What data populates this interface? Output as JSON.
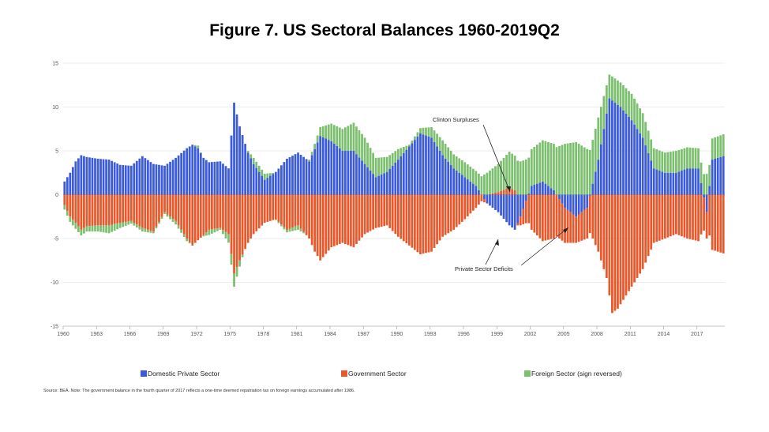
{
  "chart_data": {
    "type": "bar",
    "title": "Figure 7. US Sectoral Balances 1960-2019Q2",
    "stacked": true,
    "ylim": [
      -15,
      15
    ],
    "yticks": [
      -15,
      -10,
      -5,
      0,
      5,
      10,
      15
    ],
    "xlim": [
      1960,
      2019.5
    ],
    "xticks": [
      "1960",
      "1963",
      "1966",
      "1969",
      "1972",
      "1975",
      "1978",
      "1981",
      "1984",
      "1987",
      "1990",
      "1993",
      "1996",
      "1999",
      "2002",
      "2005",
      "2008",
      "2011",
      "2014",
      "2017"
    ],
    "grid": true,
    "legend_position": "bottom",
    "colors": {
      "domestic_private": "#3b5bdb",
      "government": "#e8582a",
      "foreign": "#7cbf6f",
      "grid": "#d9d9d9",
      "axis": "#999999"
    },
    "series": [
      {
        "name": "Domestic Private Sector",
        "points": [
          [
            1960,
            1.5
          ],
          [
            1960.5,
            2.5
          ],
          [
            1961,
            3.8
          ],
          [
            1961.5,
            4.5
          ],
          [
            1962,
            4.3
          ],
          [
            1963,
            4.1
          ],
          [
            1964,
            4.0
          ],
          [
            1965,
            3.4
          ],
          [
            1966,
            3.3
          ],
          [
            1967,
            4.4
          ],
          [
            1968,
            3.5
          ],
          [
            1969,
            3.3
          ],
          [
            1970,
            4.2
          ],
          [
            1971,
            5.3
          ],
          [
            1971.5,
            5.7
          ],
          [
            1972,
            5.3
          ],
          [
            1972.5,
            4.2
          ],
          [
            1973,
            3.7
          ],
          [
            1974,
            3.8
          ],
          [
            1974.75,
            3.0
          ],
          [
            1975.25,
            10.5
          ],
          [
            1975.75,
            7.8
          ],
          [
            1976.5,
            4.8
          ],
          [
            1977,
            3.5
          ],
          [
            1978,
            1.7
          ],
          [
            1979,
            2.6
          ],
          [
            1980,
            4.1
          ],
          [
            1981,
            4.8
          ],
          [
            1982,
            3.8
          ],
          [
            1982.5,
            5.2
          ],
          [
            1983,
            6.7
          ],
          [
            1984,
            6.1
          ],
          [
            1985,
            5.0
          ],
          [
            1986,
            5.0
          ],
          [
            1987,
            3.5
          ],
          [
            1988,
            2.0
          ],
          [
            1989,
            2.6
          ],
          [
            1990,
            4.0
          ],
          [
            1991,
            5.5
          ],
          [
            1992,
            7.0
          ],
          [
            1993,
            6.5
          ],
          [
            1994,
            4.5
          ],
          [
            1995,
            3.0
          ],
          [
            1996,
            2.0
          ],
          [
            1997,
            1.0
          ],
          [
            1998,
            -1.0
          ],
          [
            1999,
            -2.0
          ],
          [
            2000,
            -3.5
          ],
          [
            2000.5,
            -4.0
          ],
          [
            2001,
            -2.5
          ],
          [
            2002,
            1.0
          ],
          [
            2003,
            1.5
          ],
          [
            2004,
            0.5
          ],
          [
            2005,
            -1.5
          ],
          [
            2006,
            -2.5
          ],
          [
            2007,
            -1.5
          ],
          [
            2008,
            4.0
          ],
          [
            2009,
            11.0
          ],
          [
            2009.5,
            10.5
          ],
          [
            2010,
            10.0
          ],
          [
            2011,
            8.5
          ],
          [
            2012,
            6.5
          ],
          [
            2013,
            3.0
          ],
          [
            2014,
            2.5
          ],
          [
            2015,
            2.5
          ],
          [
            2016,
            3.0
          ],
          [
            2017,
            3.0
          ],
          [
            2017.75,
            -2.0
          ],
          [
            2018.25,
            4.0
          ],
          [
            2019.5,
            4.5
          ]
        ]
      },
      {
        "name": "Government Sector",
        "points": [
          [
            1960,
            -1.2
          ],
          [
            1960.5,
            -2.5
          ],
          [
            1961,
            -3.2
          ],
          [
            1961.5,
            -4.0
          ],
          [
            1962,
            -3.6
          ],
          [
            1963,
            -3.5
          ],
          [
            1964,
            -3.5
          ],
          [
            1965,
            -3.2
          ],
          [
            1966,
            -3.0
          ],
          [
            1967,
            -3.8
          ],
          [
            1968,
            -4.2
          ],
          [
            1969,
            -2.0
          ],
          [
            1970,
            -3.0
          ],
          [
            1971,
            -5.0
          ],
          [
            1971.5,
            -5.8
          ],
          [
            1972,
            -5.2
          ],
          [
            1973,
            -4.0
          ],
          [
            1974,
            -3.8
          ],
          [
            1974.75,
            -4.5
          ],
          [
            1975.25,
            -9.0
          ],
          [
            1975.75,
            -7.5
          ],
          [
            1976.5,
            -5.5
          ],
          [
            1977,
            -4.5
          ],
          [
            1978,
            -3.2
          ],
          [
            1979,
            -2.8
          ],
          [
            1980,
            -4.0
          ],
          [
            1981,
            -3.5
          ],
          [
            1982,
            -5.0
          ],
          [
            1982.5,
            -6.5
          ],
          [
            1983,
            -7.5
          ],
          [
            1984,
            -6.0
          ],
          [
            1985,
            -5.5
          ],
          [
            1986,
            -6.0
          ],
          [
            1987,
            -4.5
          ],
          [
            1988,
            -3.8
          ],
          [
            1989,
            -3.5
          ],
          [
            1990,
            -4.8
          ],
          [
            1991,
            -5.8
          ],
          [
            1992,
            -6.8
          ],
          [
            1993,
            -6.5
          ],
          [
            1994,
            -4.8
          ],
          [
            1995,
            -4.0
          ],
          [
            1996,
            -2.8
          ],
          [
            1997,
            -1.5
          ],
          [
            1998,
            0
          ],
          [
            1999,
            0.3
          ],
          [
            2000,
            0.8
          ],
          [
            2000.5,
            0.5
          ],
          [
            2001,
            -1.0
          ],
          [
            2002,
            -4.0
          ],
          [
            2003,
            -5.3
          ],
          [
            2004,
            -5.0
          ],
          [
            2005,
            -4.0
          ],
          [
            2006,
            -3.0
          ],
          [
            2007,
            -3.5
          ],
          [
            2008,
            -6.5
          ],
          [
            2008.75,
            -9.5
          ],
          [
            2009.25,
            -13.5
          ],
          [
            2009.75,
            -13.0
          ],
          [
            2010,
            -12.5
          ],
          [
            2011,
            -10.5
          ],
          [
            2012,
            -8.5
          ],
          [
            2013,
            -5.5
          ],
          [
            2014,
            -5.0
          ],
          [
            2015,
            -4.5
          ],
          [
            2016,
            -5.0
          ],
          [
            2017,
            -5.3
          ],
          [
            2017.75,
            -3.0
          ],
          [
            2018.25,
            -6.3
          ],
          [
            2019.5,
            -6.8
          ]
        ]
      },
      {
        "name": "Foreign Sector (sign reversed)",
        "points": [
          [
            1960,
            -0.5
          ],
          [
            1961,
            -0.7
          ],
          [
            1962,
            -0.6
          ],
          [
            1963,
            -0.7
          ],
          [
            1964,
            -0.9
          ],
          [
            1965,
            -0.6
          ],
          [
            1966,
            -0.3
          ],
          [
            1967,
            -0.4
          ],
          [
            1968,
            -0.2
          ],
          [
            1969,
            -0.2
          ],
          [
            1970,
            -0.4
          ],
          [
            1971,
            -0.3
          ],
          [
            1972,
            0.3
          ],
          [
            1973,
            -0.6
          ],
          [
            1974,
            -0.2
          ],
          [
            1975.25,
            -1.5
          ],
          [
            1976,
            -0.3
          ],
          [
            1977,
            0.7
          ],
          [
            1978,
            0.7
          ],
          [
            1979,
            -0.1
          ],
          [
            1980,
            -0.3
          ],
          [
            1981,
            -0.5
          ],
          [
            1982,
            0.2
          ],
          [
            1983,
            1.0
          ],
          [
            1984,
            2.0
          ],
          [
            1985,
            2.5
          ],
          [
            1986,
            3.2
          ],
          [
            1987,
            3.0
          ],
          [
            1988,
            2.2
          ],
          [
            1989,
            1.7
          ],
          [
            1990,
            1.2
          ],
          [
            1991,
            0.2
          ],
          [
            1992,
            0.6
          ],
          [
            1993,
            1.2
          ],
          [
            1994,
            1.7
          ],
          [
            1995,
            1.6
          ],
          [
            1996,
            1.7
          ],
          [
            1997,
            1.7
          ],
          [
            1998,
            2.5
          ],
          [
            1999,
            3.2
          ],
          [
            2000,
            4.1
          ],
          [
            2001,
            3.8
          ],
          [
            2002,
            4.2
          ],
          [
            2003,
            4.7
          ],
          [
            2004,
            5.3
          ],
          [
            2005,
            5.8
          ],
          [
            2006,
            6.0
          ],
          [
            2007,
            5.2
          ],
          [
            2008,
            4.8
          ],
          [
            2009,
            2.7
          ],
          [
            2010,
            2.8
          ],
          [
            2011,
            3.0
          ],
          [
            2012,
            2.8
          ],
          [
            2013,
            2.3
          ],
          [
            2014,
            2.3
          ],
          [
            2015,
            2.5
          ],
          [
            2016,
            2.4
          ],
          [
            2017,
            2.3
          ],
          [
            2018,
            2.4
          ],
          [
            2019.5,
            2.5
          ]
        ]
      }
    ],
    "annotations": [
      "Clinton Surpluses",
      "Private Sector Deficits"
    ],
    "legend": [
      "Domestic Private Sector",
      "Government Sector",
      "Foreign Sector (sign reversed)"
    ],
    "source": "Source: BEA. Note: The government balance in the fourth quarter of 2017 reflects a one-time deemed repatriation tax on foreign earnings accumulated after 1986."
  }
}
